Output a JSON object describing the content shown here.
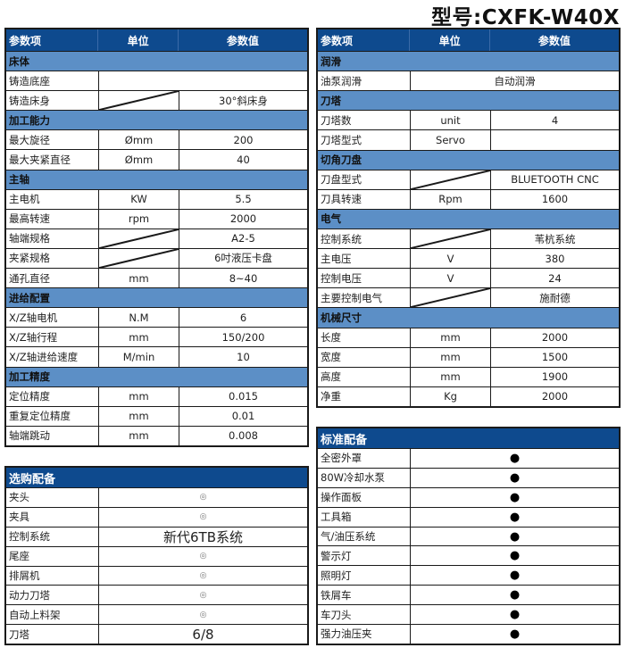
{
  "title": "型号:CXFK-W40X",
  "colors": {
    "header": "#0e4a8e",
    "section": "#5c8fc6",
    "border": "#1a1a1a"
  },
  "main_left": {
    "headers": [
      "参数项",
      "单位",
      "参数值"
    ],
    "rows": [
      {
        "type": "section",
        "name": "床体"
      },
      {
        "type": "item",
        "name": "铸造底座",
        "span": true,
        "value": ""
      },
      {
        "type": "item",
        "name": "铸造床身",
        "diag": true,
        "value": "30°斜床身"
      },
      {
        "type": "section",
        "name": "加工能力"
      },
      {
        "type": "item",
        "name": "最大旋径",
        "unit": "Ømm",
        "value": "200"
      },
      {
        "type": "item",
        "name": "最大夹紧直径",
        "unit": "Ømm",
        "value": "40"
      },
      {
        "type": "section",
        "name": "主轴"
      },
      {
        "type": "item",
        "name": "主电机",
        "unit": "KW",
        "value": "5.5"
      },
      {
        "type": "item",
        "name": "最高转速",
        "unit": "rpm",
        "value": "2000"
      },
      {
        "type": "item",
        "name": "轴端规格",
        "diag": true,
        "value": "A2-5"
      },
      {
        "type": "item",
        "name": "夹紧规格",
        "diag": true,
        "value": "6吋液压卡盘"
      },
      {
        "type": "item",
        "name": "通孔直径",
        "unit": "mm",
        "value": "8~40"
      },
      {
        "type": "section",
        "name": "进给配置"
      },
      {
        "type": "item",
        "name": "X/Z轴电机",
        "unit": "N.M",
        "value": "6"
      },
      {
        "type": "item",
        "name": "X/Z轴行程",
        "unit": "mm",
        "value": "150/200"
      },
      {
        "type": "item",
        "name": "X/Z轴进给速度",
        "unit": "M/min",
        "value": "10"
      },
      {
        "type": "section",
        "name": "加工精度"
      },
      {
        "type": "item",
        "name": "定位精度",
        "unit": "mm",
        "value": "0.015"
      },
      {
        "type": "item",
        "name": "重复定位精度",
        "unit": "mm",
        "value": "0.01"
      },
      {
        "type": "item",
        "name": "轴端跳动",
        "unit": "mm",
        "value": "0.008"
      }
    ]
  },
  "main_right": {
    "headers": [
      "参数项",
      "单位",
      "参数值"
    ],
    "rows": [
      {
        "type": "section",
        "name": "润滑"
      },
      {
        "type": "item",
        "name": "油泵润滑",
        "span": true,
        "value": "自动润滑"
      },
      {
        "type": "section",
        "name": "刀塔"
      },
      {
        "type": "item",
        "name": "刀塔数",
        "unit": "unit",
        "value": "4"
      },
      {
        "type": "item",
        "name": "刀塔型式",
        "unit": "Servo",
        "value": ""
      },
      {
        "type": "section",
        "name": "切角刀盘"
      },
      {
        "type": "item",
        "name": "刀盘型式",
        "diag": true,
        "value": "BLUETOOTH CNC"
      },
      {
        "type": "item",
        "name": "刀具转速",
        "unit": "Rpm",
        "value": "1600"
      },
      {
        "type": "section",
        "name": "电气"
      },
      {
        "type": "item",
        "name": "控制系统",
        "diag": true,
        "value": "苇杭系统"
      },
      {
        "type": "item",
        "name": "主电压",
        "unit": "V",
        "value": "380"
      },
      {
        "type": "item",
        "name": "控制电压",
        "unit": "V",
        "value": "24"
      },
      {
        "type": "item",
        "name": "主要控制电气",
        "diag": true,
        "value": "施耐德"
      },
      {
        "type": "section",
        "name": "机械尺寸"
      },
      {
        "type": "item",
        "name": "长度",
        "unit": "mm",
        "value": "2000"
      },
      {
        "type": "item",
        "name": "宽度",
        "unit": "mm",
        "value": "1500"
      },
      {
        "type": "item",
        "name": "高度",
        "unit": "mm",
        "value": "1900"
      },
      {
        "type": "item",
        "name": "净重",
        "unit": "Kg",
        "value": "2000"
      }
    ]
  },
  "optional": {
    "title": "选购配备",
    "rows": [
      {
        "name": "夹头",
        "value": "◎",
        "style": "circ"
      },
      {
        "name": "夹具",
        "value": "◎",
        "style": "circ"
      },
      {
        "name": "控制系统",
        "value": "新代6TB系统",
        "style": "big"
      },
      {
        "name": "尾座",
        "value": "◎",
        "style": "circ"
      },
      {
        "name": "排屑机",
        "value": "◎",
        "style": "circ"
      },
      {
        "name": "动力刀塔",
        "value": "◎",
        "style": "circ"
      },
      {
        "name": "自动上料架",
        "value": "◎",
        "style": "circ"
      },
      {
        "name": "刀塔",
        "value": "6/8",
        "style": "big"
      }
    ]
  },
  "standard": {
    "title": "标准配备",
    "rows": [
      {
        "name": "全密外罩",
        "value": "●",
        "style": "dot"
      },
      {
        "name": "80W冷却水泵",
        "value": "●",
        "style": "dot"
      },
      {
        "name": "操作面板",
        "value": "●",
        "style": "dot"
      },
      {
        "name": "工具箱",
        "value": "●",
        "style": "dot"
      },
      {
        "name": "气/油压系统",
        "value": "●",
        "style": "dot"
      },
      {
        "name": "警示灯",
        "value": "●",
        "style": "dot"
      },
      {
        "name": "照明灯",
        "value": "●",
        "style": "dot"
      },
      {
        "name": "铁屑车",
        "value": "●",
        "style": "dot"
      },
      {
        "name": "车刀头",
        "value": "●",
        "style": "dot"
      },
      {
        "name": "强力油压夹",
        "value": "●",
        "style": "dot"
      }
    ]
  }
}
